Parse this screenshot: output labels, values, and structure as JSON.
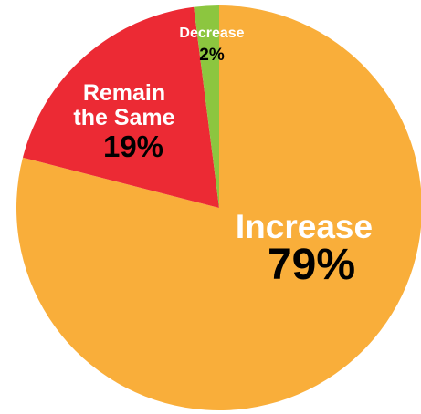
{
  "chart_data": {
    "type": "pie",
    "title": "",
    "start_angle_deg": 0,
    "direction": "clockwise",
    "slices": [
      {
        "label": "Increase",
        "value": 79,
        "value_label": "79%",
        "color": "#F9AE3A",
        "label_color": "#ffffff",
        "value_color": "#000000"
      },
      {
        "label": "Remain the Same",
        "value": 19,
        "value_label": "19%",
        "color": "#EC2A34",
        "label_color": "#ffffff",
        "value_color": "#000000"
      },
      {
        "label": "Decrease",
        "value": 2,
        "value_label": "2%",
        "color": "#8CC63F",
        "label_color": "#ffffff",
        "value_color": "#000000"
      }
    ]
  }
}
